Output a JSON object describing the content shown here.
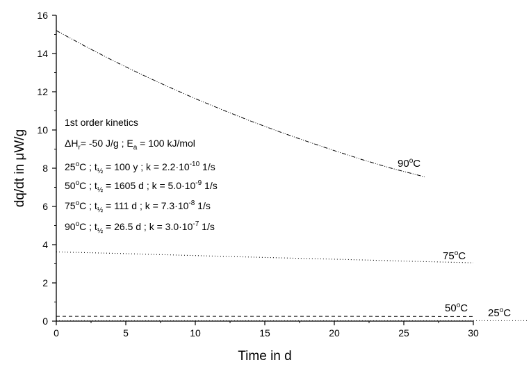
{
  "chart_data": {
    "type": "line",
    "title": "",
    "xlabel": "Time in d",
    "ylabel": "dq/dt in μW/g",
    "xlim": [
      0,
      30
    ],
    "ylim": [
      0,
      16
    ],
    "xticks": [
      "0",
      "5",
      "10",
      "15",
      "20",
      "25",
      "30"
    ],
    "yticks": [
      "0",
      "2",
      "4",
      "6",
      "8",
      "10",
      "12",
      "14",
      "16"
    ],
    "grid": false,
    "legend": "none",
    "annotation": {
      "line1": "1st order kinetics",
      "line2": {
        "a": "ΔH",
        "a_sub": "r",
        "b": "= -50 J/g ; E",
        "b_sub": "a",
        "c": " = 100 kJ/mol"
      },
      "rows": [
        {
          "temp": "25",
          "deg": "o",
          "c": "C ; t",
          "half": "½",
          "mid": " = 100 y ; k = 2.2·10",
          "exp": "-10",
          "unit": " 1/s"
        },
        {
          "temp": "50",
          "deg": "o",
          "c": "C ; t",
          "half": "½",
          "mid": " = 1605 d ; k = 5.0·10",
          "exp": "-9",
          "unit": " 1/s"
        },
        {
          "temp": "75",
          "deg": "o",
          "c": "C ; t",
          "half": "½",
          "mid": " = 111 d ; k = 7.3·10",
          "exp": "-8",
          "unit": " 1/s"
        },
        {
          "temp": "90",
          "deg": "o",
          "c": "C ; t",
          "half": "½",
          "mid": " = 26.5 d ; k = 3.0·10",
          "exp": "-7",
          "unit": " 1/s"
        }
      ]
    },
    "series": [
      {
        "label_num": "90",
        "label_deg": "o",
        "label_c": "C",
        "style": "dashdotdot",
        "x": [
          0,
          2,
          4,
          6,
          8,
          10,
          12,
          14,
          16,
          18,
          20,
          22,
          24,
          26.5
        ],
        "y": [
          15.2,
          14.41,
          13.66,
          12.95,
          12.28,
          11.64,
          11.04,
          10.46,
          9.92,
          9.41,
          8.92,
          8.45,
          8.02,
          7.55
        ]
      },
      {
        "label_num": "75",
        "label_deg": "o",
        "label_c": "C",
        "style": "dotted",
        "x": [
          0,
          5,
          10,
          15,
          20,
          25,
          30
        ],
        "y": [
          3.62,
          3.53,
          3.43,
          3.33,
          3.24,
          3.14,
          3.05
        ]
      },
      {
        "label_num": "50",
        "label_deg": "o",
        "label_c": "C",
        "style": "dashed",
        "x": [
          0,
          10,
          20,
          30
        ],
        "y": [
          0.25,
          0.25,
          0.25,
          0.24
        ]
      },
      {
        "label_num": "25",
        "label_deg": "o",
        "label_c": "C",
        "style": "sparse-dotted",
        "x": [
          0,
          34
        ],
        "y": [
          0.02,
          0.02
        ]
      }
    ]
  }
}
